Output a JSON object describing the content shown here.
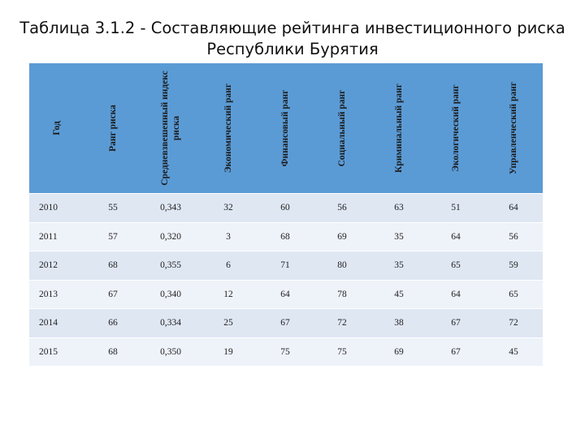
{
  "title": {
    "line1": "Таблица 3.1.2 - Составляющие рейтинга инвестиционного риска",
    "line2": "Республики Бурятия"
  },
  "table": {
    "headers": [
      "Год",
      "Ранг риска",
      "Средневзвешенный индекс риска",
      "Экономический ранг",
      "Финансовый ранг",
      "Социальный ранг",
      "Криминальный ранг",
      "Экологический ранг",
      "Управленческий ранг"
    ],
    "rows": [
      [
        "2010",
        "55",
        "0,343",
        "32",
        "60",
        "56",
        "63",
        "51",
        "64"
      ],
      [
        "2011",
        "57",
        "0,320",
        "3",
        "68",
        "69",
        "35",
        "64",
        "56"
      ],
      [
        "2012",
        "68",
        "0,355",
        "6",
        "71",
        "80",
        "35",
        "65",
        "59"
      ],
      [
        "2013",
        "67",
        "0,340",
        "12",
        "64",
        "78",
        "45",
        "64",
        "65"
      ],
      [
        "2014",
        "66",
        "0,334",
        "25",
        "67",
        "72",
        "38",
        "67",
        "72"
      ],
      [
        "2015",
        "68",
        "0,350",
        "19",
        "75",
        "75",
        "69",
        "67",
        "45"
      ]
    ]
  },
  "colors": {
    "header_fill": "#5b9bd5",
    "row_odd": "#dfe7f3",
    "row_even": "#eef2f9"
  }
}
